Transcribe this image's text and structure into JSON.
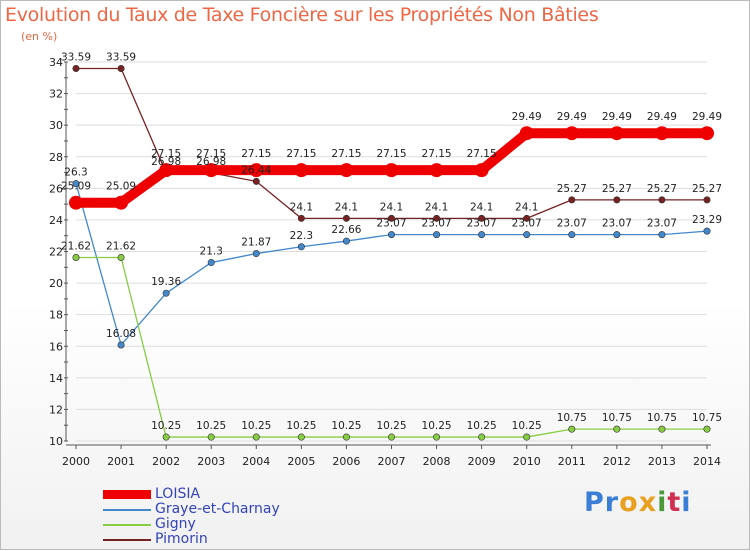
{
  "title": "Evolution du Taux de Taxe Foncière sur les Propriétés Non Bâties",
  "unit_label": "(en %)",
  "brand": {
    "logo_letters": [
      "P",
      "r",
      "o",
      "x",
      "i",
      "t",
      "i"
    ],
    "logo_colors": [
      "#3a7fd5",
      "#3a7fd5",
      "#e8a020",
      "#e8a020",
      "#4a9a3a",
      "#d03050",
      "#3a7fd5"
    ]
  },
  "chart_data": {
    "type": "line",
    "title": "Evolution du Taux de Taxe Foncière sur les Propriétés Non Bâties",
    "ylabel": "(en %)",
    "xlabel": "",
    "x": [
      "2000",
      "2001",
      "2002",
      "2003",
      "2004",
      "2005",
      "2006",
      "2007",
      "2008",
      "2009",
      "2010",
      "2011",
      "2012",
      "2013",
      "2014"
    ],
    "ylim": [
      10,
      34
    ],
    "yticks": [
      10,
      12,
      14,
      16,
      18,
      20,
      22,
      24,
      26,
      28,
      30,
      32,
      34
    ],
    "series": [
      {
        "name": "LOISIA",
        "color": "#ee0000",
        "values": [
          25.09,
          25.09,
          27.15,
          27.15,
          27.15,
          27.15,
          27.15,
          27.15,
          27.15,
          27.15,
          29.49,
          29.49,
          29.49,
          29.49,
          29.49
        ],
        "labels": [
          "25.09",
          "25.09",
          "27.15",
          "27.15",
          "27.15",
          "27.15",
          "27.15",
          "27.15",
          "27.15",
          "27.15",
          "29.49",
          "29.49",
          "29.49",
          "29.49",
          "29.49"
        ]
      },
      {
        "name": "Graye-et-Charnay",
        "color": "#4488cc",
        "values": [
          26.3,
          16.08,
          19.36,
          21.3,
          21.87,
          22.3,
          22.66,
          23.07,
          23.07,
          23.07,
          23.07,
          23.07,
          23.07,
          23.07,
          23.29
        ],
        "labels": [
          "26.3",
          "16.08",
          "19.36",
          "21.3",
          "21.87",
          "22.3",
          "22.66",
          "23.07",
          "23.07",
          "23.07",
          "23.07",
          "23.07",
          "23.07",
          "23.07",
          "23.29"
        ]
      },
      {
        "name": "Gigny",
        "color": "#88cc44",
        "values": [
          21.62,
          21.62,
          10.25,
          10.25,
          10.25,
          10.25,
          10.25,
          10.25,
          10.25,
          10.25,
          10.25,
          10.75,
          10.75,
          10.75,
          10.75
        ],
        "labels": [
          "21.62",
          "21.62",
          "10.25",
          "10.25",
          "10.25",
          "10.25",
          "10.25",
          "10.25",
          "10.25",
          "10.25",
          "10.25",
          "10.75",
          "10.75",
          "10.75",
          "10.75"
        ]
      },
      {
        "name": "Pimorin",
        "color": "#772222",
        "values": [
          33.59,
          33.59,
          26.98,
          26.98,
          26.44,
          24.1,
          24.1,
          24.1,
          24.1,
          24.1,
          24.1,
          25.27,
          25.27,
          25.27,
          25.27
        ],
        "labels": [
          "33.59",
          "33.59",
          "26.98",
          "26.98",
          "26.44",
          "24.1",
          "24.1",
          "24.1",
          "24.1",
          "24.1",
          "24.1",
          "25.27",
          "25.27",
          "25.27",
          "25.27"
        ]
      }
    ],
    "legend": [
      "LOISIA",
      "Graye-et-Charnay",
      "Gigny",
      "Pimorin"
    ],
    "legend_position": "bottom-left"
  }
}
